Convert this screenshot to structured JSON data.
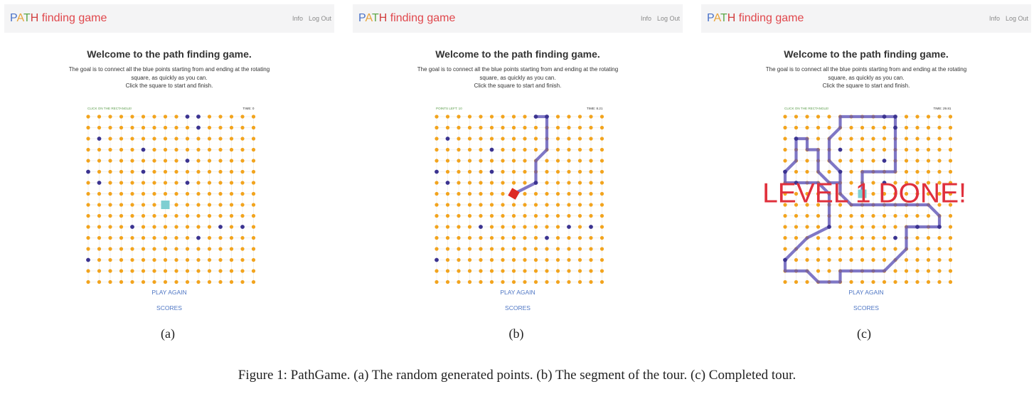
{
  "brand_letters": [
    {
      "ch": "P",
      "color": "#4a72c9"
    },
    {
      "ch": "A",
      "color": "#e8a33a"
    },
    {
      "ch": "T",
      "color": "#5fa84a"
    },
    {
      "ch": "H",
      "color": "#d13d3d"
    }
  ],
  "brand_rest": " finding game",
  "brand_rest_color": "#e0474c",
  "nav": {
    "info": "Info",
    "logout": "Log Out"
  },
  "welcome": "Welcome to the path finding game.",
  "goal_lines": [
    "The goal is to connect all the blue points starting from and ending at the rotating",
    "square, as quickly as you can.",
    "Click the square to start and finish."
  ],
  "play_again": "PLAY AGAIN",
  "scores": "SCORES",
  "colors": {
    "grid_dot": "#f2a41e",
    "target_dot": "#3b3390",
    "path": "#5f55b8",
    "square_idle": "#7fcfd2",
    "square_active": "#dd2a24",
    "done_text": "#e0303c",
    "status": "#5a9c4a"
  },
  "panels": [
    {
      "caption": "(a)",
      "status_left": "CLICK ON THE RECTANGLE!",
      "status_right": "TIME: 0",
      "square": {
        "col": 7,
        "row": 8,
        "state": "idle"
      },
      "targets": [
        [
          9,
          0
        ],
        [
          10,
          0
        ],
        [
          1,
          2
        ],
        [
          10,
          1
        ],
        [
          5,
          3
        ],
        [
          9,
          4
        ],
        [
          0,
          5
        ],
        [
          5,
          5
        ],
        [
          1,
          6
        ],
        [
          9,
          6
        ],
        [
          4,
          10
        ],
        [
          12,
          10
        ],
        [
          14,
          10
        ],
        [
          10,
          11
        ],
        [
          0,
          13
        ]
      ],
      "path": [],
      "done_text": ""
    },
    {
      "caption": "(b)",
      "status_left": "POINTS LEFT: 10",
      "status_right": "TIME: 8.21",
      "square": {
        "col": 7,
        "row": 7,
        "state": "active"
      },
      "targets": [
        [
          9,
          0
        ],
        [
          10,
          0
        ],
        [
          1,
          2
        ],
        [
          5,
          3
        ],
        [
          0,
          5
        ],
        [
          5,
          5
        ],
        [
          1,
          6
        ],
        [
          9,
          6
        ],
        [
          4,
          10
        ],
        [
          12,
          10
        ],
        [
          14,
          10
        ],
        [
          10,
          11
        ],
        [
          0,
          13
        ]
      ],
      "path": [
        [
          7,
          7
        ],
        [
          9,
          6
        ],
        [
          9,
          4
        ],
        [
          10,
          3
        ],
        [
          10,
          1
        ],
        [
          10,
          0
        ],
        [
          9,
          0
        ]
      ],
      "done_text": ""
    },
    {
      "caption": "(c)",
      "status_left": "CLICK ON THE RECTANGLE!",
      "status_right": "TIME: 29.81",
      "square": {
        "col": 7,
        "row": 7,
        "state": "idle"
      },
      "targets": [
        [
          9,
          0
        ],
        [
          10,
          0
        ],
        [
          1,
          2
        ],
        [
          10,
          1
        ],
        [
          5,
          3
        ],
        [
          9,
          4
        ],
        [
          0,
          5
        ],
        [
          5,
          5
        ],
        [
          1,
          6
        ],
        [
          9,
          6
        ],
        [
          4,
          10
        ],
        [
          12,
          10
        ],
        [
          14,
          10
        ],
        [
          10,
          11
        ],
        [
          0,
          13
        ]
      ],
      "path": [
        [
          7,
          7
        ],
        [
          7,
          5
        ],
        [
          10,
          5
        ],
        [
          10,
          0
        ],
        [
          5,
          0
        ],
        [
          5,
          1
        ],
        [
          4,
          2
        ],
        [
          4,
          4
        ],
        [
          5,
          5
        ],
        [
          5,
          6
        ],
        [
          5,
          7
        ],
        [
          6,
          8
        ],
        [
          13,
          8
        ],
        [
          14,
          9
        ],
        [
          14,
          10
        ],
        [
          11,
          10
        ],
        [
          11,
          12
        ],
        [
          9,
          14
        ],
        [
          5,
          14
        ],
        [
          5,
          15
        ],
        [
          3,
          15
        ],
        [
          2,
          14
        ],
        [
          0,
          14
        ],
        [
          0,
          13
        ],
        [
          2,
          11
        ],
        [
          4,
          10
        ],
        [
          4,
          7
        ],
        [
          3,
          6
        ],
        [
          0,
          6
        ],
        [
          0,
          5
        ],
        [
          1,
          4
        ],
        [
          1,
          2
        ],
        [
          2,
          2
        ],
        [
          2,
          3
        ],
        [
          3,
          3
        ],
        [
          3,
          5
        ],
        [
          4,
          6
        ],
        [
          5,
          6
        ]
      ],
      "done_text": "LEVEL 1 DONE!"
    }
  ],
  "figure_caption": "Figure 1: PathGame. (a) The random generated points. (b) The segment of the tour. (c) Completed tour."
}
